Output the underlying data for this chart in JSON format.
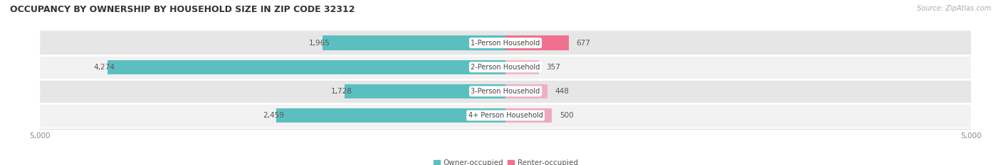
{
  "title": "OCCUPANCY BY OWNERSHIP BY HOUSEHOLD SIZE IN ZIP CODE 32312",
  "source": "Source: ZipAtlas.com",
  "categories": [
    "1-Person Household",
    "2-Person Household",
    "3-Person Household",
    "4+ Person Household"
  ],
  "owner_values": [
    1965,
    4274,
    1728,
    2459
  ],
  "renter_values": [
    677,
    357,
    448,
    500
  ],
  "x_max": 5000,
  "owner_color": "#5bbfc0",
  "renter_color_1": "#f07090",
  "renter_color_2": "#f0a0b8",
  "renter_colors": [
    "#f07090",
    "#f0b8c8",
    "#f0b0c4",
    "#f0a8c0"
  ],
  "row_bg_light": "#f2f2f2",
  "row_bg_dark": "#e6e6e6",
  "title_fontsize": 9,
  "source_fontsize": 7,
  "tick_fontsize": 7.5,
  "bar_label_fontsize": 7.5,
  "cat_label_fontsize": 7,
  "legend_fontsize": 7.5,
  "background_color": "#ffffff",
  "axis_color": "#cccccc"
}
